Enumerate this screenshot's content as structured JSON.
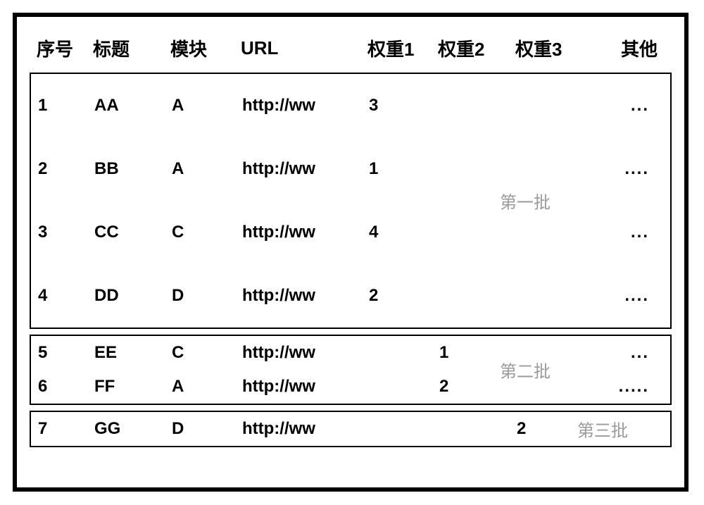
{
  "columns": {
    "seq": "序号",
    "title": "标题",
    "module": "模块",
    "url": "URL",
    "w1": "权重1",
    "w2": "权重2",
    "w3": "权重3",
    "other": "其他"
  },
  "groups": [
    {
      "batch_label": "第一批",
      "rows": [
        {
          "seq": "1",
          "title": "AA",
          "module": "A",
          "url": "http://ww",
          "w1": "3",
          "w2": "",
          "w3": "",
          "other": "..."
        },
        {
          "seq": "2",
          "title": "BB",
          "module": "A",
          "url": "http://ww",
          "w1": "1",
          "w2": "",
          "w3": "",
          "other": "...."
        },
        {
          "seq": "3",
          "title": "CC",
          "module": "C",
          "url": "http://ww",
          "w1": "4",
          "w2": "",
          "w3": "",
          "other": "..."
        },
        {
          "seq": "4",
          "title": "DD",
          "module": "D",
          "url": "http://ww",
          "w1": "2",
          "w2": "",
          "w3": "",
          "other": "...."
        }
      ]
    },
    {
      "batch_label": "第二批",
      "rows": [
        {
          "seq": "5",
          "title": "EE",
          "module": "C",
          "url": "http://ww",
          "w1": "",
          "w2": "1",
          "w3": "",
          "other": "..."
        },
        {
          "seq": "6",
          "title": "FF",
          "module": "A",
          "url": "http://ww",
          "w1": "",
          "w2": "2",
          "w3": "",
          "other": "....."
        }
      ]
    },
    {
      "batch_label": "第三批",
      "rows": [
        {
          "seq": "7",
          "title": "GG",
          "module": "D",
          "url": "http://ww",
          "w1": "",
          "w2": "",
          "w3": "2",
          "other": ""
        }
      ]
    }
  ],
  "style": {
    "outer_border_color": "#000000",
    "outer_border_width": 6,
    "group_border_color": "#000000",
    "group_border_width": 2,
    "text_color": "#000000",
    "batch_label_color": "#9a9a9a",
    "background": "#ffffff",
    "header_fontsize": 26,
    "row_fontsize": 24,
    "font_weight": 700,
    "col_widths": {
      "seq": 90,
      "title": 110,
      "module": 100,
      "url": 180,
      "w1": 100,
      "w2": 110,
      "w3": 120
    }
  }
}
